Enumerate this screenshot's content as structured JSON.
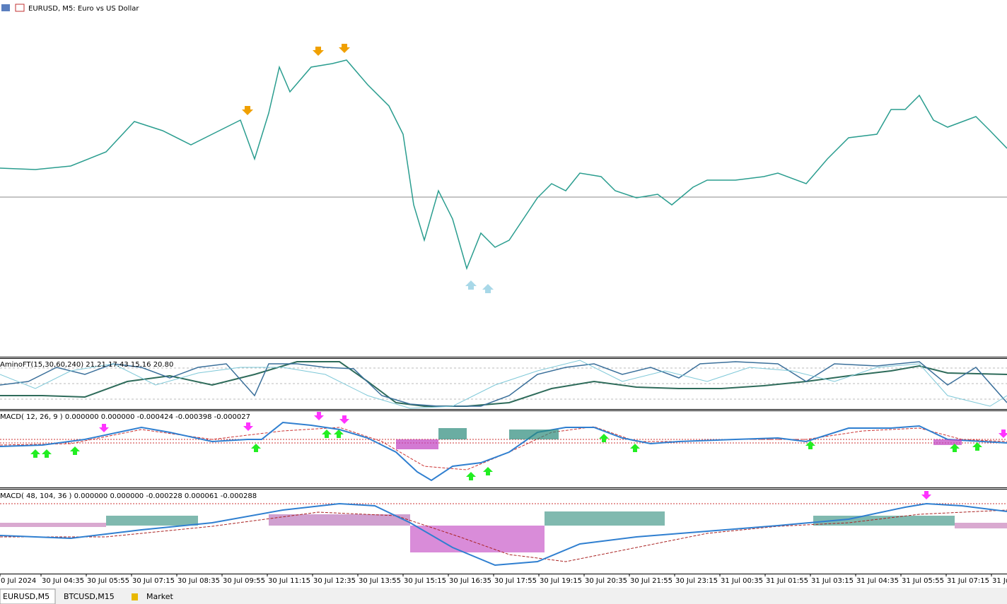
{
  "header": {
    "title": "EURUSD, M5:  Euro vs US Dollar"
  },
  "panels": [
    {
      "label": "AminoFT(15,30,60,240) 21.21 17.43 15.16 20.80"
    },
    {
      "label": "MACD( 12, 26, 9 ) 0.000000 0.000000 -0.000424 -0.000398 -0.000027"
    },
    {
      "label": "MACD( 48, 104, 36 ) 0.000000 0.000000 -0.000228 0.000061 -0.000288"
    }
  ],
  "time_axis": [
    "0 Jul 2024",
    "30 Jul 04:35",
    "30 Jul 05:55",
    "30 Jul 07:15",
    "30 Jul 08:35",
    "30 Jul 09:55",
    "30 Jul 11:15",
    "30 Jul 12:35",
    "30 Jul 13:55",
    "30 Jul 15:15",
    "30 Jul 16:35",
    "30 Jul 17:55",
    "30 Jul 19:15",
    "30 Jul 20:35",
    "30 Jul 21:55",
    "30 Jul 23:15",
    "31 Jul 00:35",
    "31 Jul 01:55",
    "31 Jul 03:15",
    "31 Jul 04:35",
    "31 Jul 05:55",
    "31 Jul 07:15",
    "31 Ju"
  ],
  "tabs": [
    "EURUSD,M5",
    "BTCUSD,M15",
    "Market"
  ]
}
